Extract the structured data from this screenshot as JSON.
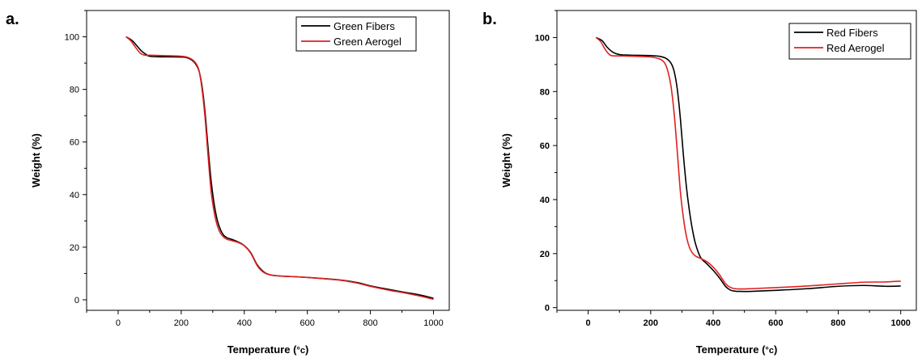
{
  "chart_data": [
    {
      "type": "line",
      "panel_label": "a.",
      "xlabel": "Temperature (",
      "xlabel_unit": "°c",
      "xlabel_close": ")",
      "ylabel": "Weight (%)",
      "xlim": [
        -100,
        1050
      ],
      "ylim": [
        -4,
        110
      ],
      "xticks": [
        0,
        200,
        400,
        600,
        800,
        1000
      ],
      "yticks": [
        0,
        20,
        40,
        60,
        80,
        100
      ],
      "legend_position": "top-right",
      "grid": false,
      "series": [
        {
          "name": "Green Fibers",
          "color": "#000000",
          "x": [
            25,
            45,
            60,
            75,
            90,
            100,
            130,
            160,
            200,
            220,
            240,
            255,
            265,
            275,
            285,
            295,
            305,
            315,
            325,
            335,
            345,
            360,
            380,
            400,
            420,
            440,
            455,
            470,
            490,
            520,
            600,
            700,
            760,
            800,
            860,
            900,
            950,
            1000
          ],
          "y": [
            100,
            98.5,
            96.5,
            94.5,
            93.2,
            92.6,
            92.4,
            92.4,
            92.3,
            92.0,
            90.5,
            87.5,
            82,
            72,
            58,
            45,
            36,
            30,
            26.5,
            24.5,
            23.6,
            23.0,
            22.0,
            20.6,
            18.0,
            13.5,
            11.3,
            10.0,
            9.3,
            9.0,
            8.5,
            7.6,
            6.5,
            5.3,
            3.9,
            3.0,
            2.0,
            0.6
          ]
        },
        {
          "name": "Green Aerogel",
          "color": "#e02020",
          "x": [
            25,
            40,
            55,
            70,
            85,
            100,
            130,
            160,
            200,
            220,
            240,
            255,
            265,
            275,
            285,
            295,
            305,
            315,
            325,
            335,
            345,
            360,
            380,
            400,
            420,
            440,
            455,
            470,
            490,
            520,
            600,
            700,
            760,
            800,
            860,
            900,
            950,
            1000
          ],
          "y": [
            100,
            98.5,
            96.0,
            93.8,
            93.0,
            93.0,
            92.9,
            92.8,
            92.6,
            92.2,
            90.8,
            87.8,
            81,
            70,
            55,
            41,
            33,
            28,
            25.2,
            23.8,
            23.0,
            22.5,
            21.8,
            20.5,
            17.8,
            13.2,
            11.0,
            9.9,
            9.3,
            9.0,
            8.5,
            7.5,
            6.3,
            5.1,
            3.6,
            2.8,
            1.6,
            0.2
          ]
        }
      ]
    },
    {
      "type": "line",
      "panel_label": "b.",
      "xlabel": "Temperature (",
      "xlabel_unit": "°c",
      "xlabel_close": ")",
      "ylabel": "Weight (%)",
      "xlim": [
        -100,
        1050
      ],
      "ylim": [
        -1,
        110
      ],
      "xticks": [
        0,
        200,
        400,
        600,
        800,
        1000
      ],
      "yticks": [
        0,
        20,
        40,
        60,
        80,
        100
      ],
      "legend_position": "top-right",
      "grid": false,
      "series": [
        {
          "name": "Red Fibers",
          "color": "#000000",
          "x": [
            25,
            45,
            60,
            80,
            100,
            130,
            160,
            200,
            230,
            250,
            265,
            275,
            285,
            295,
            305,
            315,
            325,
            335,
            345,
            360,
            380,
            400,
            420,
            440,
            455,
            470,
            490,
            520,
            600,
            700,
            800,
            880,
            950,
            1000
          ],
          "y": [
            100,
            98.8,
            96.5,
            94.5,
            93.7,
            93.5,
            93.4,
            93.3,
            93.0,
            92.2,
            90.5,
            87.5,
            81,
            70,
            56,
            44,
            35,
            28,
            23,
            18.5,
            16.2,
            13.8,
            11.0,
            7.8,
            6.5,
            6.1,
            6.0,
            6.0,
            6.4,
            7.0,
            7.9,
            8.2,
            7.9,
            8.0
          ]
        },
        {
          "name": "Red Aerogel",
          "color": "#e02020",
          "x": [
            25,
            40,
            55,
            70,
            85,
            100,
            130,
            160,
            200,
            230,
            245,
            255,
            265,
            275,
            285,
            295,
            305,
            315,
            325,
            335,
            345,
            360,
            380,
            400,
            420,
            440,
            455,
            470,
            490,
            520,
            600,
            700,
            800,
            880,
            950,
            1000
          ],
          "y": [
            100,
            98.5,
            95.5,
            93.5,
            93.2,
            93.2,
            93.1,
            93.0,
            92.8,
            92.0,
            90.5,
            87.5,
            82,
            72,
            58,
            43,
            33,
            26,
            22,
            20,
            19,
            18.2,
            17.0,
            15.0,
            12.2,
            8.8,
            7.5,
            7.0,
            6.9,
            7.0,
            7.4,
            8.0,
            8.8,
            9.4,
            9.5,
            9.8
          ]
        }
      ]
    }
  ]
}
